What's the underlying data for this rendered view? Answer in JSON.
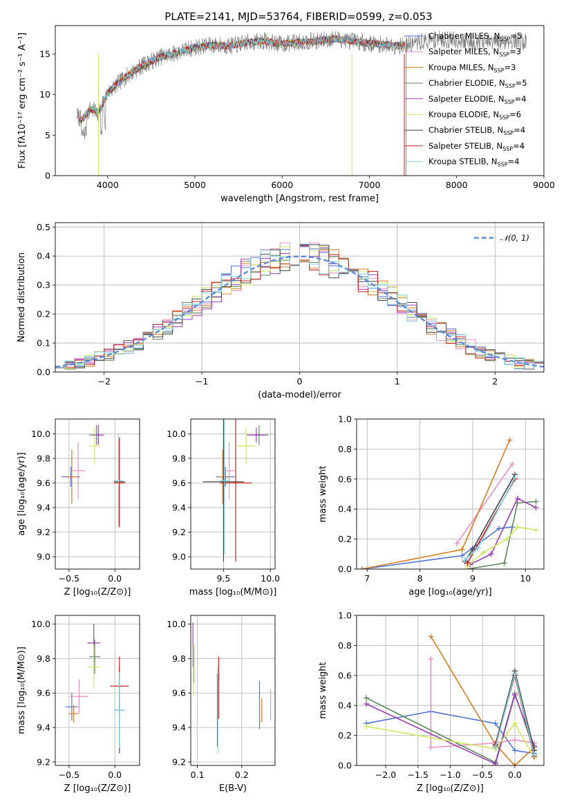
{
  "figure": {
    "title": "PLATE=2141, MJD=53764, FIBERID=0599, z=0.053"
  },
  "chart_data": [
    {
      "type": "line",
      "name": "spectrum",
      "xlabel": "wavelength [Angstrom, rest frame]",
      "ylabel": "Flux [fλ10⁻¹⁷ erg cm⁻² s⁻¹ A⁻¹]",
      "xlim": [
        3400,
        9000
      ],
      "ylim": [
        0,
        18.5
      ],
      "xticks": [
        4000,
        5000,
        6000,
        7000,
        8000,
        9000
      ],
      "yticks": [
        0,
        5,
        10,
        15
      ],
      "grid": false,
      "legend_position": "right",
      "x": [
        3650,
        3700,
        3800,
        3900,
        4000,
        4100,
        4200,
        4300,
        4400,
        4600,
        4800,
        5000,
        5200,
        5400,
        5600,
        5800,
        6000,
        6200,
        6400,
        6600,
        6800,
        7000,
        7200,
        7400,
        7600,
        7800,
        8000,
        8200,
        8400,
        8600,
        8800
      ],
      "y": [
        7.5,
        6.8,
        8.2,
        7.8,
        10.2,
        11.2,
        12.1,
        12.9,
        13.6,
        14.6,
        15.2,
        15.8,
        16.1,
        16.0,
        16.4,
        16.6,
        16.2,
        16.5,
        16.6,
        16.9,
        16.6,
        16.3,
        16.1,
        16.0,
        16.5,
        16.8,
        16.7,
        16.5,
        16.4,
        16.6,
        16.5
      ],
      "series": [
        {
          "name": "Chabrier MILES, N",
          "sub": "SSP",
          "suffix": "=5",
          "color": "#4f73d5"
        },
        {
          "name": "Salpeter MILES, N",
          "sub": "SSP",
          "suffix": "=3",
          "color": "#e88ec3"
        },
        {
          "name": "Kroupa MILES, N",
          "sub": "SSP",
          "suffix": "=3",
          "color": "#d97a22"
        },
        {
          "name": "Chabrier ELODIE, N",
          "sub": "SSP",
          "suffix": "=5",
          "color": "#5b8a5b"
        },
        {
          "name": "Salpeter ELODIE, N",
          "sub": "SSP",
          "suffix": "=4",
          "color": "#9b3cb8"
        },
        {
          "name": "Kroupa ELODIE, N",
          "sub": "SSP",
          "suffix": "=6",
          "color": "#cde860"
        },
        {
          "name": "Chabrier STELIB, N",
          "sub": "SSP",
          "suffix": "=4",
          "color": "#444444"
        },
        {
          "name": "Salpeter STELIB, N",
          "sub": "SSP",
          "suffix": "=4",
          "color": "#c42020"
        },
        {
          "name": "Kroupa STELIB, N",
          "sub": "SSP",
          "suffix": "=4",
          "color": "#7fd3e0"
        }
      ]
    },
    {
      "type": "histogram",
      "name": "residuals",
      "xlabel": "(data-model)/error",
      "ylabel": "Normed distribution",
      "xlim": [
        -2.5,
        2.5
      ],
      "ylim": [
        0,
        0.515
      ],
      "xticks": [
        -2,
        -1,
        0,
        1,
        2
      ],
      "yticks": [
        0.0,
        0.1,
        0.2,
        0.3,
        0.4,
        0.5
      ],
      "grid": true,
      "legend_position": "top-right",
      "reference_label": "𝒩(0, 1)",
      "reference_color": "#5b8bd9",
      "bin_width": 0.1
    },
    {
      "type": "scatter",
      "name": "age-vs-Z",
      "xlabel": "Z [log₁₀(Z/Z⊙)]",
      "ylabel": "age  [log₁₀(age/yr)]",
      "xlim": [
        -0.65,
        0.27
      ],
      "ylim": [
        8.9,
        10.12
      ],
      "xticks": [
        -0.5,
        0.0
      ],
      "yticks": [
        9.0,
        9.2,
        9.4,
        9.6,
        9.8,
        10.0
      ],
      "grid": true,
      "points": [
        {
          "x": -0.48,
          "y": 9.65,
          "xerr": 0.1,
          "yerr": 0.08,
          "color": "#4f73d5"
        },
        {
          "x": -0.4,
          "y": 9.7,
          "xerr": 0.08,
          "yerr": 0.23,
          "color": "#e88ec3"
        },
        {
          "x": -0.47,
          "y": 9.65,
          "xerr": 0.06,
          "yerr": 0.22,
          "color": "#d97a22"
        },
        {
          "x": -0.2,
          "y": 9.99,
          "xerr": 0.08,
          "yerr": 0.08,
          "color": "#5b8a5b"
        },
        {
          "x": -0.18,
          "y": 9.99,
          "xerr": 0.06,
          "yerr": 0.08,
          "color": "#9b3cb8"
        },
        {
          "x": -0.22,
          "y": 9.9,
          "xerr": 0.06,
          "yerr": 0.15,
          "color": "#cde860"
        },
        {
          "x": 0.05,
          "y": 9.61,
          "xerr": 0.06,
          "yerr": 0.36,
          "color": "#444444"
        },
        {
          "x": 0.05,
          "y": 9.6,
          "xerr": 0.06,
          "yerr": 0.36,
          "color": "#c42020"
        },
        {
          "x": 0.04,
          "y": 9.62,
          "xerr": 0.05,
          "yerr": 0.38,
          "color": "#7fd3e0"
        }
      ]
    },
    {
      "type": "scatter",
      "name": "age-vs-mass",
      "xlabel": "mass [log₁₀(M/M⊙)]",
      "ylabel": "",
      "xlim": [
        9.15,
        10.05
      ],
      "ylim": [
        8.9,
        10.12
      ],
      "xticks": [
        9.5,
        10.0
      ],
      "yticks": [
        9.0,
        9.2,
        9.4,
        9.6,
        9.8,
        10.0
      ],
      "grid": true,
      "points": [
        {
          "x": 9.52,
          "y": 9.65,
          "xerr": 0.1,
          "yerr": 0.08,
          "color": "#4f73d5"
        },
        {
          "x": 9.56,
          "y": 9.7,
          "xerr": 0.06,
          "yerr": 0.23,
          "color": "#e88ec3"
        },
        {
          "x": 9.49,
          "y": 9.65,
          "xerr": 0.05,
          "yerr": 0.22,
          "color": "#d97a22"
        },
        {
          "x": 9.88,
          "y": 9.99,
          "xerr": 0.1,
          "yerr": 0.08,
          "color": "#5b8a5b"
        },
        {
          "x": 9.85,
          "y": 9.99,
          "xerr": 0.1,
          "yerr": 0.06,
          "color": "#9b3cb8"
        },
        {
          "x": 9.74,
          "y": 9.9,
          "xerr": 0.1,
          "yerr": 0.15,
          "color": "#cde860"
        },
        {
          "x": 9.5,
          "y": 9.61,
          "xerr": 0.22,
          "yerr": 0.65,
          "color": "#444444"
        },
        {
          "x": 9.63,
          "y": 9.6,
          "xerr": 0.17,
          "yerr": 0.64,
          "color": "#c42020"
        },
        {
          "x": 9.51,
          "y": 9.62,
          "xerr": 0.05,
          "yerr": 0.6,
          "color": "#7fd3e0"
        }
      ]
    },
    {
      "type": "line",
      "name": "mass-weight-vs-age",
      "xlabel": "age  [log₁₀(age/yr)]",
      "ylabel": "mass weight",
      "xlim": [
        6.8,
        10.35
      ],
      "ylim": [
        0,
        1.0
      ],
      "xticks": [
        7,
        8,
        9,
        10
      ],
      "yticks": [
        0.0,
        0.2,
        0.4,
        0.6,
        0.8,
        1.0
      ],
      "grid": true,
      "series": [
        {
          "color": "#4f73d5",
          "points": [
            [
              6.9,
              0.0
            ],
            [
              8.8,
              0.09
            ],
            [
              9.0,
              0.14
            ],
            [
              9.5,
              0.27
            ],
            [
              9.75,
              0.28
            ]
          ]
        },
        {
          "color": "#e88ec3",
          "points": [
            [
              8.7,
              0.17
            ],
            [
              9.75,
              0.7
            ]
          ]
        },
        {
          "color": "#d97a22",
          "points": [
            [
              6.9,
              0.0
            ],
            [
              8.8,
              0.13
            ],
            [
              9.7,
              0.86
            ]
          ]
        },
        {
          "color": "#5b8a5b",
          "points": [
            [
              8.9,
              0.0
            ],
            [
              9.6,
              0.04
            ],
            [
              9.85,
              0.44
            ],
            [
              10.2,
              0.45
            ]
          ]
        },
        {
          "color": "#9b3cb8",
          "points": [
            [
              8.95,
              0.03
            ],
            [
              9.35,
              0.1
            ],
            [
              9.85,
              0.47
            ],
            [
              10.2,
              0.41
            ]
          ]
        },
        {
          "color": "#cde860",
          "points": [
            [
              8.9,
              0.02
            ],
            [
              9.2,
              0.11
            ],
            [
              9.65,
              0.2
            ],
            [
              9.85,
              0.28
            ],
            [
              10.2,
              0.26
            ]
          ]
        },
        {
          "color": "#444444",
          "points": [
            [
              8.85,
              0.05
            ],
            [
              9.0,
              0.13
            ],
            [
              9.8,
              0.63
            ]
          ]
        },
        {
          "color": "#c42020",
          "points": [
            [
              8.9,
              0.04
            ],
            [
              9.8,
              0.6
            ]
          ]
        },
        {
          "color": "#7fd3e0",
          "points": [
            [
              8.85,
              0.06
            ],
            [
              9.1,
              0.14
            ],
            [
              9.8,
              0.61
            ]
          ]
        }
      ]
    },
    {
      "type": "scatter",
      "name": "mass-vs-Z",
      "xlabel": "Z [log₁₀(Z/Z⊙)]",
      "ylabel": "mass [log₁₀(M/M⊙)]",
      "xlim": [
        -0.65,
        0.27
      ],
      "ylim": [
        9.18,
        10.05
      ],
      "xticks": [
        -0.5,
        0.0
      ],
      "yticks": [
        9.2,
        9.4,
        9.6,
        9.8,
        10.0
      ],
      "grid": true,
      "points": [
        {
          "x": -0.47,
          "y": 9.52,
          "xerr": 0.07,
          "yerr": 0.08,
          "color": "#4f73d5"
        },
        {
          "x": -0.39,
          "y": 9.58,
          "xerr": 0.1,
          "yerr": 0.1,
          "color": "#e88ec3"
        },
        {
          "x": -0.45,
          "y": 9.48,
          "xerr": 0.05,
          "yerr": 0.05,
          "color": "#d97a22"
        },
        {
          "x": -0.22,
          "y": 9.81,
          "xerr": 0.06,
          "yerr": 0.1,
          "color": "#5b8a5b"
        },
        {
          "x": -0.23,
          "y": 9.89,
          "xerr": 0.07,
          "yerr": 0.11,
          "color": "#9b3cb8"
        },
        {
          "x": -0.23,
          "y": 9.75,
          "xerr": 0.07,
          "yerr": 0.13,
          "color": "#cde860"
        },
        {
          "x": 0.05,
          "y": 9.5,
          "xerr": 0.05,
          "yerr": 0.25,
          "color": "#444444"
        },
        {
          "x": 0.05,
          "y": 9.64,
          "xerr": 0.1,
          "yerr": 0.17,
          "color": "#c42020"
        },
        {
          "x": 0.05,
          "y": 9.5,
          "xerr": 0.06,
          "yerr": 0.22,
          "color": "#7fd3e0"
        }
      ]
    },
    {
      "type": "scatter",
      "name": "mass-vs-EBV",
      "xlabel": "E(B-V)",
      "ylabel": "",
      "xlim": [
        0.085,
        0.275
      ],
      "ylim": [
        9.18,
        10.05
      ],
      "xticks": [
        0.1,
        0.2
      ],
      "yticks": [
        9.2,
        9.4,
        9.6,
        9.8,
        10.0
      ],
      "grid": true,
      "points": [
        {
          "x": 0.24,
          "y": 9.53,
          "yerr": 0.14,
          "color": "#4f73d5"
        },
        {
          "x": 0.265,
          "y": 9.53,
          "yerr": 0.09,
          "color": "#e88ec3"
        },
        {
          "x": 0.245,
          "y": 9.5,
          "yerr": 0.07,
          "color": "#d97a22"
        },
        {
          "x": 0.092,
          "y": 9.77,
          "yerr": 0.11,
          "color": "#5b8a5b"
        },
        {
          "x": 0.09,
          "y": 9.88,
          "yerr": 0.13,
          "color": "#9b3cb8"
        },
        {
          "x": 0.091,
          "y": 9.73,
          "yerr": 0.15,
          "color": "#cde860"
        },
        {
          "x": 0.145,
          "y": 9.5,
          "yerr": 0.21,
          "color": "#444444"
        },
        {
          "x": 0.148,
          "y": 9.63,
          "yerr": 0.18,
          "color": "#c42020"
        },
        {
          "x": 0.146,
          "y": 9.5,
          "yerr": 0.25,
          "color": "#7fd3e0"
        }
      ]
    },
    {
      "type": "line",
      "name": "mass-weight-vs-Z",
      "xlabel": "Z [log₁₀(Z/Z⊙)]",
      "ylabel": "mass weight",
      "xlim": [
        -2.45,
        0.45
      ],
      "ylim": [
        0,
        1.0
      ],
      "xticks": [
        -2.0,
        -1.5,
        -1.0,
        -0.5,
        0.0
      ],
      "yticks": [
        0.0,
        0.2,
        0.4,
        0.6,
        0.8,
        1.0
      ],
      "grid": true,
      "series": [
        {
          "color": "#4f73d5",
          "points": [
            [
              -2.3,
              0.28
            ],
            [
              -1.3,
              0.36
            ],
            [
              -0.3,
              0.28
            ],
            [
              0.0,
              0.1
            ],
            [
              0.3,
              0.08
            ]
          ]
        },
        {
          "color": "#e88ec3",
          "points": [
            [
              -1.3,
              0.71
            ],
            [
              -1.3,
              0.12
            ],
            [
              -0.3,
              0.15
            ],
            [
              0.0,
              0.17
            ],
            [
              0.3,
              0.15
            ]
          ]
        },
        {
          "color": "#d97a22",
          "points": [
            [
              -1.3,
              0.86
            ],
            [
              -0.3,
              0.14
            ],
            [
              0.0,
              0.0
            ],
            [
              0.3,
              0.12
            ]
          ]
        },
        {
          "color": "#5b8a5b",
          "points": [
            [
              -2.3,
              0.45
            ],
            [
              -0.3,
              0.02
            ],
            [
              0.0,
              0.48
            ],
            [
              0.3,
              0.1
            ]
          ]
        },
        {
          "color": "#9b3cb8",
          "points": [
            [
              -2.3,
              0.41
            ],
            [
              -0.3,
              0.01
            ],
            [
              0.0,
              0.47
            ],
            [
              0.3,
              0.13
            ]
          ]
        },
        {
          "color": "#cde860",
          "points": [
            [
              -2.3,
              0.26
            ],
            [
              -0.3,
              0.11
            ],
            [
              0.0,
              0.28
            ],
            [
              0.3,
              0.05
            ]
          ]
        },
        {
          "color": "#444444",
          "points": [
            [
              -0.3,
              0.14
            ],
            [
              0.0,
              0.63
            ],
            [
              0.3,
              0.1
            ]
          ]
        },
        {
          "color": "#c42020",
          "points": [
            [
              -0.3,
              0.13
            ],
            [
              0.0,
              0.6
            ],
            [
              0.3,
              0.06
            ]
          ]
        },
        {
          "color": "#7fd3e0",
          "points": [
            [
              -0.3,
              0.12
            ],
            [
              0.0,
              0.61
            ],
            [
              0.3,
              0.07
            ]
          ]
        }
      ]
    }
  ]
}
